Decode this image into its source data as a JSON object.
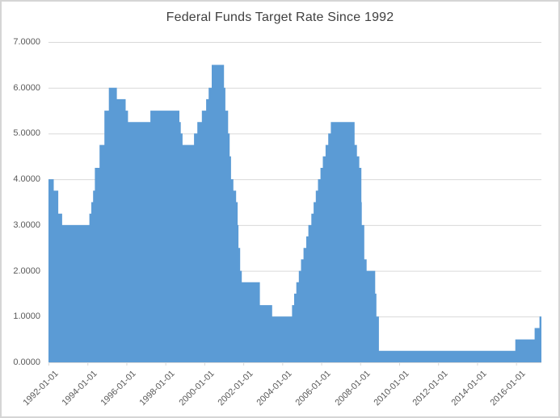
{
  "window": {
    "background": "#FFFFFF",
    "border_color": "#D5D5D5"
  },
  "chart_data": {
    "type": "area",
    "step": true,
    "title": "Federal Funds Target Rate Since 1992",
    "legend": "none",
    "grid": "horizontal",
    "colors": {
      "area": "#5B9BD5",
      "gridline": "#D9D9D9",
      "tick": "#D9D9D9",
      "axis_line": "#D9D9D9",
      "axis_label": "#595959",
      "title": "#404040"
    },
    "x_axis": {
      "start": 1992.0,
      "end": 2017.3,
      "tick_values": [
        1992,
        1994,
        1996,
        1998,
        2000,
        2002,
        2004,
        2006,
        2008,
        2010,
        2012,
        2014,
        2016
      ],
      "tick_labels": [
        "1992-01-01",
        "1994-01-01",
        "1996-01-01",
        "1998-01-01",
        "2000-01-01",
        "2002-01-01",
        "2004-01-01",
        "2006-01-01",
        "2008-01-01",
        "2010-01-01",
        "2012-01-01",
        "2014-01-01",
        "2016-01-01"
      ]
    },
    "y_axis": {
      "min": 0,
      "max": 7,
      "tick_values": [
        7,
        6,
        5,
        4,
        3,
        2,
        1,
        0
      ],
      "tick_labels": [
        "7.0000",
        "6.0000",
        "5.0000",
        "4.0000",
        "3.0000",
        "2.0000",
        "1.0000",
        "0.0000"
      ]
    },
    "series": [
      {
        "points": [
          [
            1992.0,
            4.0
          ],
          [
            1992.27,
            3.75
          ],
          [
            1992.5,
            3.25
          ],
          [
            1992.7,
            3.0
          ],
          [
            1994.1,
            3.25
          ],
          [
            1994.2,
            3.5
          ],
          [
            1994.29,
            3.75
          ],
          [
            1994.38,
            4.25
          ],
          [
            1994.62,
            4.75
          ],
          [
            1994.87,
            5.5
          ],
          [
            1995.1,
            6.0
          ],
          [
            1995.51,
            5.75
          ],
          [
            1995.96,
            5.5
          ],
          [
            1996.08,
            5.25
          ],
          [
            1997.23,
            5.5
          ],
          [
            1998.72,
            5.25
          ],
          [
            1998.79,
            5.0
          ],
          [
            1998.88,
            4.75
          ],
          [
            1999.47,
            5.0
          ],
          [
            1999.64,
            5.25
          ],
          [
            1999.87,
            5.5
          ],
          [
            2000.09,
            5.75
          ],
          [
            2000.22,
            6.0
          ],
          [
            2000.38,
            6.5
          ],
          [
            2001.01,
            6.0
          ],
          [
            2001.08,
            5.5
          ],
          [
            2001.22,
            5.0
          ],
          [
            2001.3,
            4.5
          ],
          [
            2001.37,
            4.0
          ],
          [
            2001.49,
            3.75
          ],
          [
            2001.63,
            3.5
          ],
          [
            2001.71,
            3.0
          ],
          [
            2001.75,
            2.5
          ],
          [
            2001.84,
            2.0
          ],
          [
            2001.92,
            1.75
          ],
          [
            2002.85,
            1.25
          ],
          [
            2003.48,
            1.0
          ],
          [
            2004.5,
            1.25
          ],
          [
            2004.61,
            1.5
          ],
          [
            2004.72,
            1.75
          ],
          [
            2004.85,
            2.0
          ],
          [
            2004.96,
            2.25
          ],
          [
            2005.09,
            2.5
          ],
          [
            2005.23,
            2.75
          ],
          [
            2005.34,
            3.0
          ],
          [
            2005.49,
            3.25
          ],
          [
            2005.61,
            3.5
          ],
          [
            2005.72,
            3.75
          ],
          [
            2005.83,
            4.0
          ],
          [
            2005.96,
            4.25
          ],
          [
            2006.08,
            4.5
          ],
          [
            2006.22,
            4.75
          ],
          [
            2006.36,
            5.0
          ],
          [
            2006.49,
            5.25
          ],
          [
            2007.71,
            4.75
          ],
          [
            2007.83,
            4.5
          ],
          [
            2007.95,
            4.25
          ],
          [
            2008.06,
            3.5
          ],
          [
            2008.08,
            3.0
          ],
          [
            2008.21,
            2.25
          ],
          [
            2008.33,
            2.0
          ],
          [
            2008.77,
            1.5
          ],
          [
            2008.83,
            1.0
          ],
          [
            2008.96,
            0.25
          ],
          [
            2015.96,
            0.5
          ],
          [
            2016.95,
            0.75
          ],
          [
            2017.2,
            1.0
          ]
        ]
      }
    ]
  }
}
